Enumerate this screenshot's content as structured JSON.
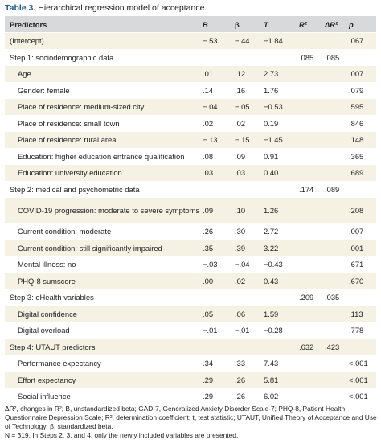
{
  "caption": {
    "label": "Table 3.",
    "text": "Hierarchical regression model of acceptance."
  },
  "header": {
    "predictors": "Predictors",
    "b": "B",
    "beta": "β",
    "t": "T",
    "r2": "R²",
    "dr2": "ΔR²",
    "p": "p"
  },
  "rows": [
    {
      "label": "(Intercept)",
      "b": "−.53",
      "beta": "−.44",
      "t": "−1.84",
      "r2": "",
      "dr2": "",
      "p": ".067"
    },
    {
      "label": "Step 1: sociodemographic data",
      "b": "",
      "beta": "",
      "t": "",
      "r2": ".085",
      "dr2": ".085",
      "p": ""
    },
    {
      "label": "Age",
      "b": ".01",
      "beta": ".12",
      "t": "2.73",
      "r2": "",
      "dr2": "",
      "p": ".007"
    },
    {
      "label": "Gender: female",
      "b": ".14",
      "beta": ".16",
      "t": "1.76",
      "r2": "",
      "dr2": "",
      "p": ".079"
    },
    {
      "label": "Place of residence: medium-sized city",
      "b": "−.04",
      "beta": "−.05",
      "t": "−0.53",
      "r2": "",
      "dr2": "",
      "p": ".595"
    },
    {
      "label": "Place of residence: small town",
      "b": ".02",
      "beta": ".02",
      "t": "0.19",
      "r2": "",
      "dr2": "",
      "p": ".846"
    },
    {
      "label": "Place of residence: rural area",
      "b": "−.13",
      "beta": "−.15",
      "t": "−1.45",
      "r2": "",
      "dr2": "",
      "p": ".148"
    },
    {
      "label": "Education: higher education entrance qualification",
      "b": ".08",
      "beta": ".09",
      "t": "0.91",
      "r2": "",
      "dr2": "",
      "p": ".365"
    },
    {
      "label": "Education: university education",
      "b": ".03",
      "beta": ".03",
      "t": "0.40",
      "r2": "",
      "dr2": "",
      "p": ".689"
    },
    {
      "label": "Step 2: medical and psychometric data",
      "b": "",
      "beta": "",
      "t": "",
      "r2": ".174",
      "dr2": ".089",
      "p": ""
    },
    {
      "label": "COVID-19 progression: moderate to severe symptoms",
      "b": ".09",
      "beta": ".10",
      "t": "1.26",
      "r2": "",
      "dr2": "",
      "p": ".208"
    },
    {
      "label": "Current condition: moderate",
      "b": ".26",
      "beta": ".30",
      "t": "2.72",
      "r2": "",
      "dr2": "",
      "p": ".007"
    },
    {
      "label": "Current condition: still significantly impaired",
      "b": ".35",
      "beta": ".39",
      "t": "3.22",
      "r2": "",
      "dr2": "",
      "p": ".001"
    },
    {
      "label": "Mental illness: no",
      "b": "−.03",
      "beta": "−.04",
      "t": "−0.43",
      "r2": "",
      "dr2": "",
      "p": ".671"
    },
    {
      "label": "PHQ-8 sumscore",
      "b": ".00",
      "beta": ".02",
      "t": "0.43",
      "r2": "",
      "dr2": "",
      "p": ".670"
    },
    {
      "label": "Step 3: eHealth variables",
      "b": "",
      "beta": "",
      "t": "",
      "r2": ".209",
      "dr2": ".035",
      "p": ""
    },
    {
      "label": "Digital confidence",
      "b": ".05",
      "beta": ".06",
      "t": "1.59",
      "r2": "",
      "dr2": "",
      "p": ".113"
    },
    {
      "label": "Digital overload",
      "b": "−.01",
      "beta": "−.01",
      "t": "−0.28",
      "r2": "",
      "dr2": "",
      "p": ".778"
    },
    {
      "label": "Step 4: UTAUT predictors",
      "b": "",
      "beta": "",
      "t": "",
      "r2": ".632",
      "dr2": ".423",
      "p": ""
    },
    {
      "label": "Performance expectancy",
      "b": ".34",
      "beta": ".33",
      "t": "7.43",
      "r2": "",
      "dr2": "",
      "p": "<.001"
    },
    {
      "label": "Effort expectancy",
      "b": ".29",
      "beta": ".26",
      "t": "5.81",
      "r2": "",
      "dr2": "",
      "p": "<.001"
    },
    {
      "label": "Social influence",
      "b": ".29",
      "beta": ".26",
      "t": "6.02",
      "r2": "",
      "dr2": "",
      "p": "<.001"
    }
  ],
  "footnote": {
    "line1": "ΔR², changes in R²; B, unstandardized beta; GAD-7, Generalized Anxiety Disorder Scale-7; PHQ-8, Patient Health Questionnaire Depression Scale; R², determination coefficient; t, test statistic; UTAUT, Unified Theory of Acceptance and Use of Technology; β, standardized beta.",
    "line2": "N = 319. In Steps 2, 3, and 4, only the newly included variables are presented."
  }
}
